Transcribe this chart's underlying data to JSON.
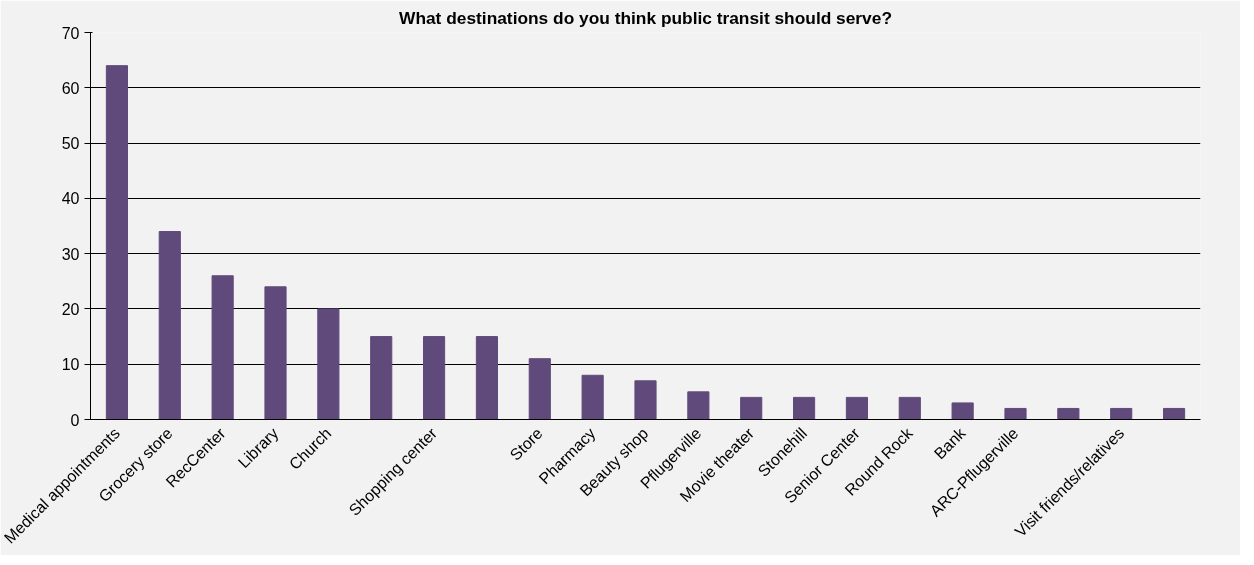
{
  "chart_data": {
    "type": "bar",
    "title": "What destinations do you think public transit should serve?",
    "categories": [
      "Medical appointments",
      "Grocery store",
      "RecCenter",
      "Library",
      "Church",
      null,
      "Shopping center",
      null,
      "Store",
      "Pharmacy",
      "Beauty shop",
      "Pflugerville",
      "Movie theater",
      "Stonehill",
      "Senior Center",
      "Round Rock",
      "Bank",
      "ARC-Pflugerville",
      null,
      "Visit friends/relatives",
      null
    ],
    "values": [
      64,
      34,
      26,
      24,
      20,
      15,
      15,
      15,
      11,
      8,
      7,
      5,
      4,
      4,
      4,
      4,
      3,
      2,
      2,
      2,
      2
    ],
    "color": "#604a7b",
    "ylim": [
      0,
      70
    ],
    "yticks": [
      0,
      10,
      20,
      30,
      40,
      50,
      60,
      70
    ],
    "grid": "y"
  }
}
